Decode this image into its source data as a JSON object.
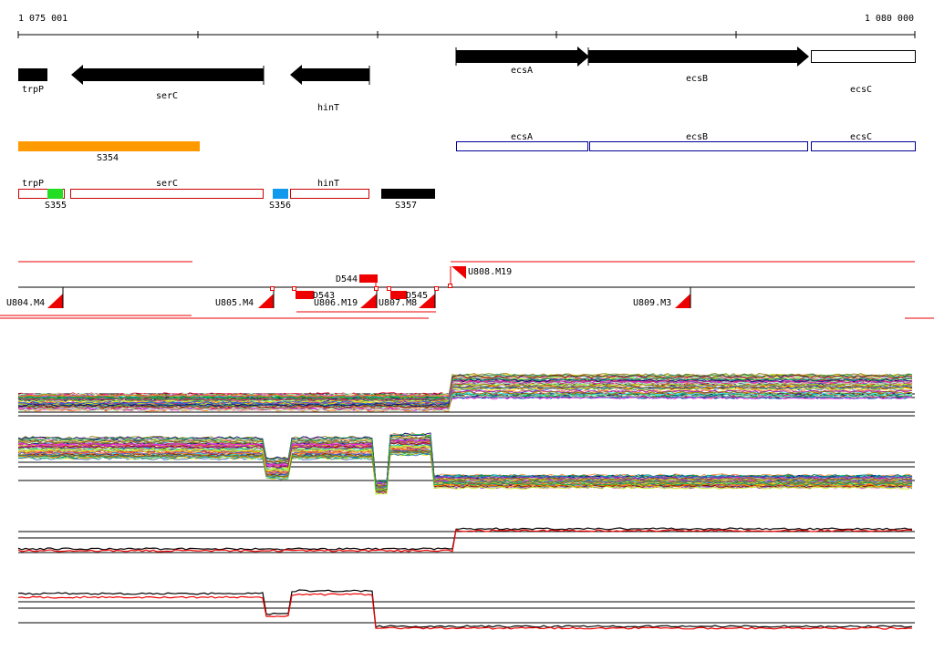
{
  "ruler": {
    "start_label": "1 075 001",
    "end_label": "1 080 000"
  },
  "colors": {
    "gene": "#000000",
    "utr_box": "#cc0000",
    "cds_box": "#000099",
    "s354": "#ff9900",
    "s355": "#22dd22",
    "s356": "#1199ee",
    "s357": "#000000",
    "segment": "#ee0000"
  },
  "genes": [
    {
      "id": "gene-trpP",
      "label": "trpP",
      "strand": "none"
    },
    {
      "id": "gene-serC",
      "label": "serC",
      "strand": "-"
    },
    {
      "id": "gene-hinT",
      "label": "hinT",
      "strand": "-"
    },
    {
      "id": "gene-ecsA",
      "label": "ecsA",
      "strand": "+"
    },
    {
      "id": "gene-ecsB",
      "label": "ecsB",
      "strand": "+"
    },
    {
      "id": "gene-ecsC",
      "label": "ecsC",
      "strand": "none"
    }
  ],
  "cds_track": [
    {
      "id": "cds-ecsA",
      "label": "ecsA"
    },
    {
      "id": "cds-ecsB",
      "label": "ecsB"
    },
    {
      "id": "cds-ecsC",
      "label": "ecsC"
    }
  ],
  "regions": [
    {
      "id": "region-S354",
      "label": "S354"
    },
    {
      "id": "region-S355",
      "label": "S355"
    },
    {
      "id": "region-S356",
      "label": "S356"
    },
    {
      "id": "region-S357",
      "label": "S357"
    }
  ],
  "utr_track": [
    {
      "id": "utr-trpP",
      "label": "trpP"
    },
    {
      "id": "utr-serC",
      "label": "serC"
    },
    {
      "id": "utr-hinT",
      "label": "hinT"
    }
  ],
  "segments": [
    {
      "id": "segment-U804-M4",
      "label": "U804.M4"
    },
    {
      "id": "segment-U805-M4",
      "label": "U805.M4"
    },
    {
      "id": "segment-D543",
      "label": "D543"
    },
    {
      "id": "segment-U806-M19",
      "label": "U806.M19"
    },
    {
      "id": "segment-D544",
      "label": "D544"
    },
    {
      "id": "segment-U807-M8",
      "label": "U807.M8"
    },
    {
      "id": "segment-D545",
      "label": "D545"
    },
    {
      "id": "segment-U808-M19",
      "label": "U808.M19"
    },
    {
      "id": "segment-U809-M3",
      "label": "U809.M3"
    }
  ]
}
